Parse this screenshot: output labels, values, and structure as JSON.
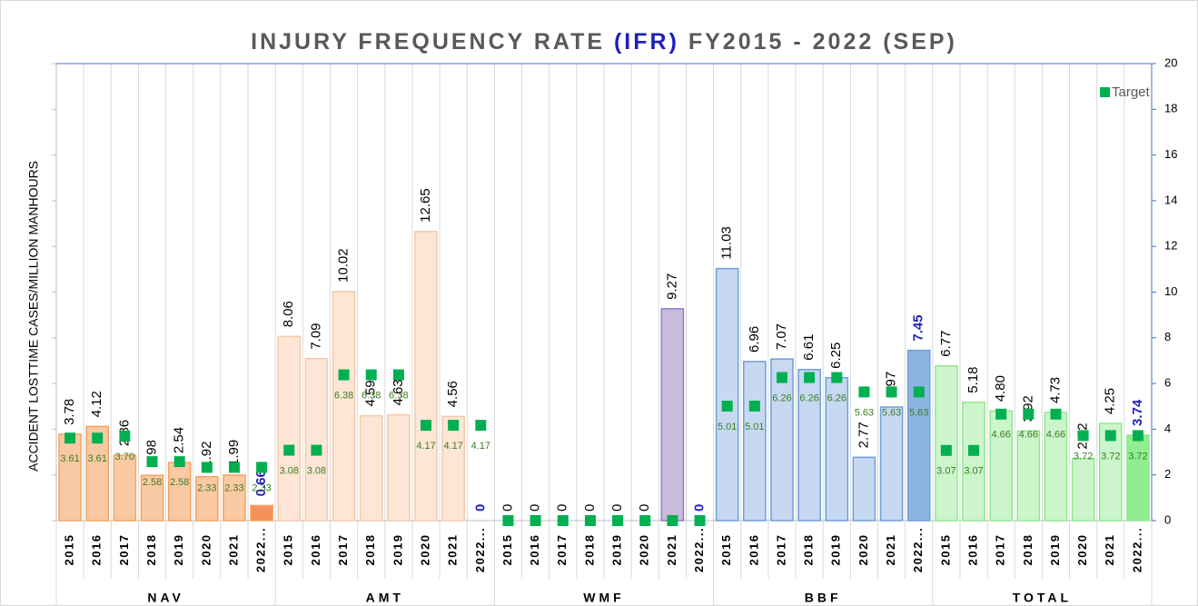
{
  "chart_data": {
    "type": "bar",
    "title_parts": [
      "INJURY FREQUENCY RATE ",
      "(IFR)",
      " FY2015 - 2022 (SEP)"
    ],
    "y_label": "ACCIDENT LOSTTIME CASES/MILLION MANHOURS",
    "categories": [
      "2015",
      "2016",
      "2017",
      "2018",
      "2019",
      "2020",
      "2021",
      "2022...",
      "2015",
      "2016",
      "2017",
      "2018",
      "2019",
      "2020",
      "2021",
      "2022...",
      "2015",
      "2016",
      "2017",
      "2018",
      "2019",
      "2020",
      "2021",
      "2022...",
      "2015",
      "2016",
      "2017",
      "2018",
      "2019",
      "2020",
      "2021",
      "2022...",
      "2015",
      "2016",
      "2017",
      "2018",
      "2019",
      "2020",
      "2021",
      "2022..."
    ],
    "groups": [
      {
        "name": "NAV",
        "fill": "#f9c9a4",
        "stroke": "#f4a460",
        "last_fill": "#f5915a"
      },
      {
        "name": "AMT",
        "fill": "#fde6d6",
        "stroke": "#f6c9a8",
        "last_fill": "#fde6d6"
      },
      {
        "name": "WMF",
        "fill": "#c9bcdb",
        "stroke": "#8e7cc3",
        "last_fill": "#c9bcdb"
      },
      {
        "name": "BBF",
        "fill": "#c6d9f1",
        "stroke": "#6f9fd8",
        "last_fill": "#8eb4e3"
      },
      {
        "name": "TOTAL",
        "fill": "#ccf5cc",
        "stroke": "#90e890",
        "last_fill": "#90ee90"
      }
    ],
    "series": [
      {
        "values": [
          3.78,
          4.12,
          2.86,
          1.98,
          2.54,
          1.92,
          1.99,
          0.66,
          8.06,
          7.09,
          10.02,
          4.59,
          4.63,
          12.65,
          4.56,
          0,
          0,
          0,
          0,
          0,
          0,
          0,
          9.27,
          0,
          11.03,
          6.96,
          7.07,
          6.61,
          6.25,
          2.77,
          4.97,
          7.45,
          6.77,
          5.18,
          4.8,
          3.92,
          4.73,
          2.72,
          4.25,
          3.74
        ],
        "value_labels": [
          "3.78",
          "4.12",
          "2.86",
          "1.98",
          "2.54",
          "1.92",
          "1.99",
          "0.66",
          "8.06",
          "7.09",
          "10.02",
          "4.59",
          "4.63",
          "12.65",
          "4.56",
          "0",
          "0",
          "0",
          "0",
          "0",
          "0",
          "0",
          "9.27",
          "0",
          "11.03",
          "6.96",
          "7.07",
          "6.61",
          "6.25",
          "2.77",
          "4.97",
          "7.45",
          "6.77",
          "5.18",
          "4.80",
          "3.92",
          "4.73",
          "2.72",
          "4.25",
          "3.74"
        ]
      },
      {
        "name": "Target",
        "color": "#00b050",
        "values": [
          3.61,
          3.61,
          3.7,
          2.58,
          2.58,
          2.33,
          2.33,
          2.33,
          3.08,
          3.08,
          6.38,
          6.38,
          6.38,
          4.17,
          4.17,
          4.17,
          0,
          0,
          0,
          0,
          0,
          0,
          0,
          0,
          5.01,
          5.01,
          6.26,
          6.26,
          6.26,
          5.63,
          5.63,
          5.63,
          3.07,
          3.07,
          4.66,
          4.66,
          4.66,
          3.72,
          3.72,
          3.72
        ],
        "value_labels": [
          "3.61",
          "3.61",
          "3.70",
          "2.58",
          "2.58",
          "2.33",
          "2.33",
          "2.33",
          "3.08",
          "3.08",
          "6.38",
          "6.38",
          "6.38",
          "4.17",
          "4.17",
          "4.17",
          null,
          null,
          null,
          null,
          null,
          null,
          null,
          null,
          "5.01",
          "5.01",
          "6.26",
          "6.26",
          "6.26",
          "5.63",
          "5.63",
          "5.63",
          "3.07",
          "3.07",
          "4.66",
          "4.66",
          "4.66",
          "3.72",
          "3.72",
          "3.72"
        ]
      }
    ],
    "ylim": [
      0,
      20
    ],
    "yticks": [
      0,
      2,
      4,
      6,
      8,
      10,
      12,
      14,
      16,
      18,
      20
    ],
    "grid": true,
    "legend": "top-right"
  }
}
